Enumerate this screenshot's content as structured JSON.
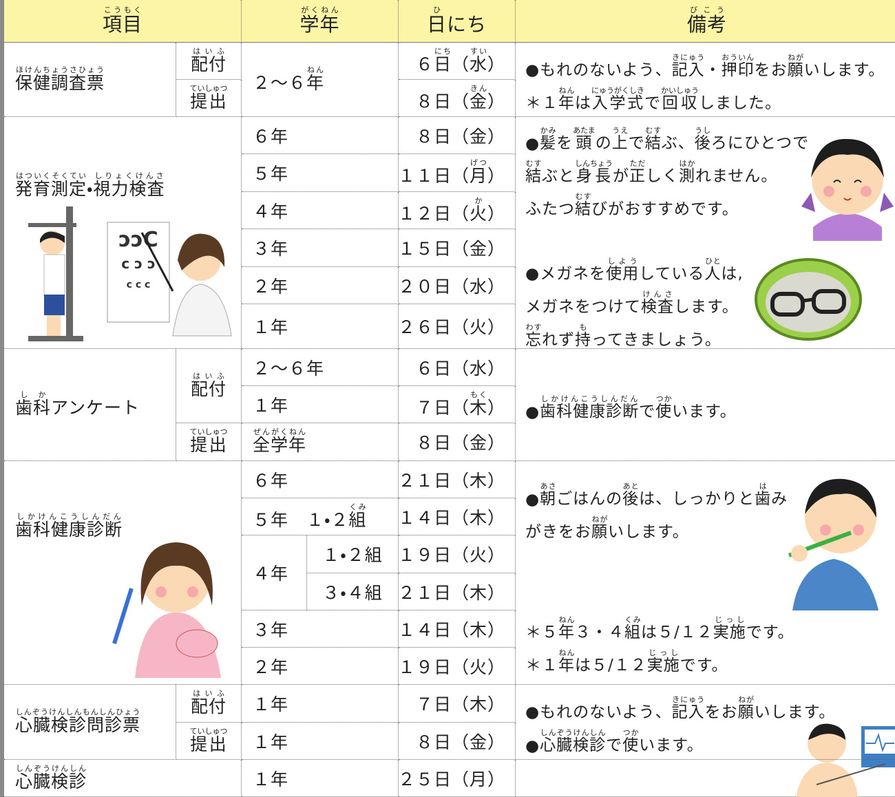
{
  "cells": [
    {
      "lines": [
        [
          [
            "項目",
            "こうもく"
          ]
        ]
      ]
    },
    {
      "lines": [
        [
          [
            "学年",
            "がくねん"
          ]
        ]
      ]
    },
    {
      "lines": [
        [
          [
            "日",
            "ひ"
          ],
          "にち"
        ]
      ]
    },
    {
      "lines": [
        [
          [
            "備考",
            "びこう"
          ]
        ]
      ]
    },
    {
      "lines": [
        [
          [
            "保健調査票",
            "ほけんちょうさひょう"
          ]
        ]
      ]
    },
    {
      "lines": [
        [
          [
            "配付",
            "はいふ"
          ]
        ]
      ]
    },
    {
      "lines": [
        [
          [
            "提出",
            "ていしゅつ"
          ]
        ]
      ]
    },
    {
      "lines": [
        [
          "２～６",
          [
            "年",
            "ねん"
          ]
        ]
      ]
    },
    {
      "lines": [
        [
          "６",
          [
            "日",
            "にち"
          ],
          "（",
          [
            "水",
            "すい"
          ],
          "）"
        ]
      ]
    },
    {
      "lines": [
        [
          "８日（",
          [
            "金",
            "きん"
          ],
          "）"
        ]
      ]
    },
    {
      "lines": [
        [
          "●もれのないよう、",
          [
            "記入",
            "きにゅう"
          ],
          "・",
          [
            "押印",
            "おういん"
          ],
          "をお",
          [
            "願",
            "ねが"
          ],
          "いします。"
        ],
        [
          "＊１",
          [
            "年",
            "ねん"
          ],
          "は",
          [
            "入学式",
            "にゅうがくしき"
          ],
          "で",
          [
            "回収",
            "かいしゅう"
          ],
          "しました。"
        ]
      ]
    },
    {
      "lines": [
        [
          [
            "発育測定",
            "はついくそくてい"
          ],
          "・",
          [
            "視力検査",
            "しりょくけんさ"
          ]
        ]
      ]
    },
    {
      "lines": [
        [
          "６年"
        ]
      ]
    },
    {
      "lines": [
        [
          "５年"
        ]
      ]
    },
    {
      "lines": [
        [
          "４年"
        ]
      ]
    },
    {
      "lines": [
        [
          "３年"
        ]
      ]
    },
    {
      "lines": [
        [
          "２年"
        ]
      ]
    },
    {
      "lines": [
        [
          "１年"
        ]
      ]
    },
    {
      "lines": [
        [
          "８日（金）"
        ]
      ]
    },
    {
      "lines": [
        [
          "１１日（",
          [
            "月",
            "げつ"
          ],
          "）"
        ]
      ]
    },
    {
      "lines": [
        [
          "１２日（",
          [
            "火",
            "か"
          ],
          "）"
        ]
      ]
    },
    {
      "lines": [
        [
          "１５日（金）"
        ]
      ]
    },
    {
      "lines": [
        [
          "２０日（水）"
        ]
      ]
    },
    {
      "lines": [
        [
          "２６日（火）"
        ]
      ]
    },
    {
      "lines": [
        [
          "●",
          [
            "髪",
            "かみ"
          ],
          "を",
          [
            "頭",
            "あたま"
          ],
          "の",
          [
            "上",
            "うえ"
          ],
          "で",
          [
            "結",
            "むす"
          ],
          "ぶ、",
          [
            "後",
            "うし"
          ],
          "ろにひとつで"
        ],
        [
          [
            "結",
            "むす"
          ],
          "ぶと",
          [
            "身長",
            "しんちょう"
          ],
          "が",
          [
            "正",
            "ただ"
          ],
          "しく",
          [
            "測",
            "はか"
          ],
          "れません。"
        ],
        [
          "ふたつ",
          [
            "結",
            "むす"
          ],
          "びがおすすめです。"
        ]
      ]
    },
    {
      "lines": [
        [
          "●メガネを",
          [
            "使用",
            "しよう"
          ],
          "している",
          [
            "人",
            "ひと"
          ],
          "は,"
        ],
        [
          "メガネをつけて",
          [
            "検査",
            "けんさ"
          ],
          "します。"
        ],
        [
          [
            "忘",
            "わす"
          ],
          "れず",
          [
            "持",
            "も"
          ],
          "ってきましょう。"
        ]
      ]
    },
    {
      "lines": [
        [
          [
            "歯科",
            "しか"
          ],
          "アンケート"
        ]
      ]
    },
    {
      "lines": [
        [
          [
            "配付",
            "はいふ"
          ]
        ]
      ]
    },
    {
      "lines": [
        [
          [
            "提出",
            "ていしゅつ"
          ]
        ]
      ]
    },
    {
      "lines": [
        [
          "２～６年"
        ]
      ]
    },
    {
      "lines": [
        [
          "１年"
        ]
      ]
    },
    {
      "lines": [
        [
          [
            "全学年",
            "ぜんがくねん"
          ]
        ]
      ]
    },
    {
      "lines": [
        [
          "６日（水）"
        ]
      ]
    },
    {
      "lines": [
        [
          "７日（",
          [
            "木",
            "もく"
          ],
          "）"
        ]
      ]
    },
    {
      "lines": [
        [
          "８日（金）"
        ]
      ]
    },
    {
      "lines": [
        [
          "●",
          [
            "歯科健康診断",
            "しかけんこうしんだん"
          ],
          "で",
          [
            "使",
            "つか"
          ],
          "います。"
        ]
      ]
    },
    {
      "lines": [
        [
          [
            "歯科健康診断",
            "しかけんこうしんだん"
          ]
        ]
      ]
    },
    {
      "lines": [
        [
          "６年"
        ]
      ]
    },
    {
      "lines": [
        [
          "５年　１・２",
          [
            "組",
            "くみ"
          ]
        ]
      ]
    },
    {
      "lines": [
        [
          "４年"
        ]
      ]
    },
    {
      "lines": [
        [
          "１・２組"
        ]
      ]
    },
    {
      "lines": [
        [
          "３・４組"
        ]
      ]
    },
    {
      "lines": [
        [
          "３年"
        ]
      ]
    },
    {
      "lines": [
        [
          "２年"
        ]
      ]
    },
    {
      "lines": [
        [
          "２１日（木）"
        ]
      ]
    },
    {
      "lines": [
        [
          "１４日（木）"
        ]
      ]
    },
    {
      "lines": [
        [
          "１９日（火）"
        ]
      ]
    },
    {
      "lines": [
        [
          "２１日（木）"
        ]
      ]
    },
    {
      "lines": [
        [
          "１４日（木）"
        ]
      ]
    },
    {
      "lines": [
        [
          "１９日（火）"
        ]
      ]
    },
    {
      "lines": [
        [
          "●",
          [
            "朝",
            "あさ"
          ],
          "ごはんの",
          [
            "後",
            "あと"
          ],
          "は、しっかりと",
          [
            "歯",
            "は"
          ],
          "み"
        ],
        [
          "がきをお",
          [
            "願",
            "ねが"
          ],
          "いします。"
        ]
      ]
    },
    {
      "lines": [
        [
          "＊５",
          [
            "年",
            "ねん"
          ],
          "３・４",
          [
            "組",
            "くみ"
          ],
          "は５/１２",
          [
            "実施",
            "じっし"
          ],
          "です。"
        ],
        [
          "＊１",
          [
            "年",
            "ねん"
          ],
          "は５/１２",
          [
            "実施",
            "じっし"
          ],
          "です。"
        ]
      ]
    },
    {
      "lines": [
        [
          [
            "心臓検診問診票",
            "しんぞうけんしんもんしんひょう"
          ]
        ]
      ]
    },
    {
      "lines": [
        [
          [
            "配付",
            "はいふ"
          ]
        ]
      ]
    },
    {
      "lines": [
        [
          [
            "提出",
            "ていしゅつ"
          ]
        ]
      ]
    },
    {
      "lines": [
        [
          "１年"
        ]
      ]
    },
    {
      "lines": [
        [
          "１年"
        ]
      ]
    },
    {
      "lines": [
        [
          "７日（木）"
        ]
      ]
    },
    {
      "lines": [
        [
          "８日（金）"
        ]
      ]
    },
    {
      "lines": [
        [
          "●もれのないよう、",
          [
            "記入",
            "きにゅう"
          ],
          "をお",
          [
            "願",
            "ねが"
          ],
          "いします。"
        ],
        [
          "●",
          [
            "心臓検診",
            "しんぞうけんしん"
          ],
          "で",
          [
            "使",
            "つか"
          ],
          "います。"
        ]
      ]
    },
    {
      "lines": [
        [
          [
            "心臓検診",
            "しんぞうけんしん"
          ]
        ]
      ]
    },
    {
      "lines": [
        [
          "１年"
        ]
      ]
    },
    {
      "lines": [
        [
          "２５日（月）"
        ]
      ]
    }
  ]
}
